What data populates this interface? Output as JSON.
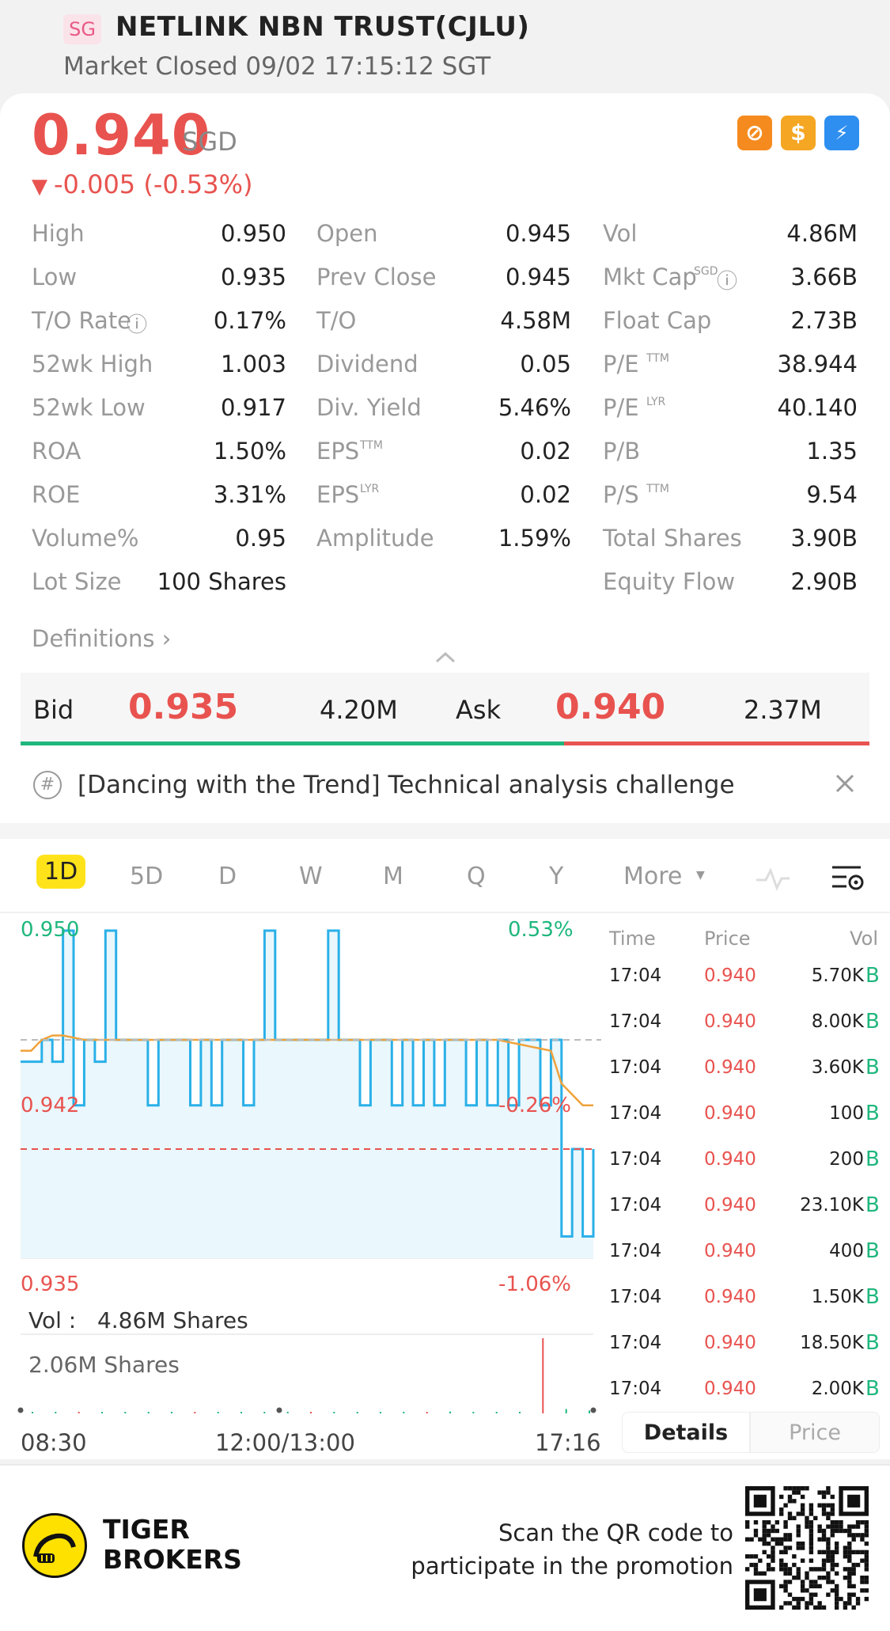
{
  "header": {
    "market_badge": "SG",
    "title": "NETLINK NBN TRUST(CJLU)",
    "status": "Market Closed 09/02 17:15:12 SGT"
  },
  "quote": {
    "price": "0.940",
    "currency": "SGD",
    "change": "-0.005 (-0.53%)",
    "up_color": "#1fb77d",
    "down_color": "#e8534f"
  },
  "stats": {
    "col1": [
      {
        "label": "High",
        "value": "0.950"
      },
      {
        "label": "Low",
        "value": "0.935"
      },
      {
        "label": "T/O Rate",
        "value": "0.17%"
      },
      {
        "label": "52wk High",
        "value": "1.003"
      },
      {
        "label": "52wk Low",
        "value": "0.917"
      },
      {
        "label": "ROA",
        "value": "1.50%"
      },
      {
        "label": "ROE",
        "value": "3.31%"
      },
      {
        "label": "Volume%",
        "value": "0.95"
      },
      {
        "label": "Lot Size",
        "value": "100 Shares"
      }
    ],
    "col2": [
      {
        "label": "Open",
        "value": "0.945"
      },
      {
        "label": "Prev Close",
        "value": "0.945"
      },
      {
        "label": "T/O",
        "value": "4.58M"
      },
      {
        "label": "Dividend",
        "value": "0.05"
      },
      {
        "label": "Div. Yield",
        "value": "5.46%"
      },
      {
        "label": "EPS",
        "sup": "TTM",
        "value": "0.02"
      },
      {
        "label": "EPS",
        "sup": "LYR",
        "value": "0.02"
      },
      {
        "label": "Amplitude",
        "value": "1.59%"
      }
    ],
    "col3": [
      {
        "label": "Vol",
        "value": "4.86M"
      },
      {
        "label": "Mkt Cap",
        "sup": "SGD",
        "value": "3.66B"
      },
      {
        "label": "Float Cap",
        "value": "2.73B"
      },
      {
        "label": "P/E",
        "sup": "TTM",
        "value": "38.944"
      },
      {
        "label": "P/E",
        "sup": "LYR",
        "value": "40.140"
      },
      {
        "label": "P/B",
        "value": "1.35"
      },
      {
        "label": "P/S",
        "sup": "TTM",
        "value": "9.54"
      },
      {
        "label": "Total Shares",
        "value": "3.90B"
      },
      {
        "label": "Equity Flow",
        "value": "2.90B"
      }
    ],
    "definitions": "Definitions"
  },
  "orderbook": {
    "bid_label": "Bid",
    "bid_price": "0.935",
    "bid_size": "4.20M",
    "ask_label": "Ask",
    "ask_price": "0.940",
    "ask_size": "2.37M",
    "bid_fraction": 0.64
  },
  "banner": {
    "text": "[Dancing with the Trend] Technical analysis challenge"
  },
  "period_tabs": [
    "1D",
    "5D",
    "D",
    "W",
    "M",
    "Q",
    "Y",
    "More"
  ],
  "active_tab": "1D",
  "chart": {
    "high_label": "0.950",
    "high_pct": "0.53%",
    "mid_label": "0.942",
    "mid_pct": "-0.26%",
    "low_label": "0.935",
    "low_pct": "-1.06%",
    "vol_label": "Vol :",
    "vol_value": "4.86M Shares",
    "vol_max": "2.06M Shares",
    "x_start": "08:30",
    "x_mid": "12:00/13:00",
    "x_end": "17:16"
  },
  "chart_data": {
    "type": "line",
    "ylim": [
      0.935,
      0.95
    ],
    "prev_close": 0.945,
    "series": [
      {
        "values": [
          0.944,
          0.944,
          0.945,
          0.944,
          0.95,
          0.942,
          0.945,
          0.944,
          0.95,
          0.945,
          0.945,
          0.945,
          0.942,
          0.945,
          0.945,
          0.945,
          0.942,
          0.945,
          0.942,
          0.945,
          0.945,
          0.942,
          0.945,
          0.95,
          0.945,
          0.945,
          0.945,
          0.945,
          0.945,
          0.95,
          0.945,
          0.945,
          0.942,
          0.945,
          0.945,
          0.942,
          0.945,
          0.942,
          0.945,
          0.942,
          0.945,
          0.945,
          0.942,
          0.945,
          0.942,
          0.945,
          0.942,
          0.945,
          0.945,
          0.942,
          0.945,
          0.936,
          0.94,
          0.936,
          0.94
        ]
      },
      {
        "values": [
          0.9445,
          0.9445,
          0.945,
          0.9452,
          0.9452,
          0.9451,
          0.945,
          0.945,
          0.945,
          0.945,
          0.945,
          0.945,
          0.945,
          0.945,
          0.945,
          0.945,
          0.945,
          0.945,
          0.945,
          0.945,
          0.945,
          0.945,
          0.945,
          0.945,
          0.945,
          0.945,
          0.945,
          0.945,
          0.945,
          0.945,
          0.945,
          0.945,
          0.945,
          0.945,
          0.945,
          0.945,
          0.945,
          0.945,
          0.945,
          0.945,
          0.945,
          0.945,
          0.945,
          0.945,
          0.945,
          0.945,
          0.9449,
          0.9448,
          0.9447,
          0.9446,
          0.9445,
          0.943,
          0.9425,
          0.942,
          0.942
        ]
      }
    ],
    "volume_shares_M": [
      0.01,
      0.02,
      0.01,
      0.03,
      0.01,
      0.02,
      0.01,
      0.01,
      0.02,
      0.01,
      0.02,
      0.01,
      0.01,
      0.02,
      0.01,
      0.01,
      0.02,
      0.01,
      0.05,
      0.02,
      0.01,
      0.03,
      2.06,
      0.12,
      0.08
    ]
  },
  "trades": {
    "headers": {
      "time": "Time",
      "price": "Price",
      "vol": "Vol"
    },
    "rows": [
      {
        "time": "17:04",
        "price": "0.940",
        "vol": "5.70K",
        "side": "B"
      },
      {
        "time": "17:04",
        "price": "0.940",
        "vol": "8.00K",
        "side": "B"
      },
      {
        "time": "17:04",
        "price": "0.940",
        "vol": "3.60K",
        "side": "B"
      },
      {
        "time": "17:04",
        "price": "0.940",
        "vol": "100",
        "side": "B"
      },
      {
        "time": "17:04",
        "price": "0.940",
        "vol": "200",
        "side": "B"
      },
      {
        "time": "17:04",
        "price": "0.940",
        "vol": "23.10K",
        "side": "B"
      },
      {
        "time": "17:04",
        "price": "0.940",
        "vol": "400",
        "side": "B"
      },
      {
        "time": "17:04",
        "price": "0.940",
        "vol": "1.50K",
        "side": "B"
      },
      {
        "time": "17:04",
        "price": "0.940",
        "vol": "18.50K",
        "side": "B"
      },
      {
        "time": "17:04",
        "price": "0.940",
        "vol": "2.00K",
        "side": "B"
      }
    ],
    "tab_details": "Details",
    "tab_price": "Price"
  },
  "footer": {
    "brand_line1": "TIGER",
    "brand_line2": "BROKERS",
    "scan_line1": "Scan the QR code to",
    "scan_line2": "participate in the promotion"
  }
}
